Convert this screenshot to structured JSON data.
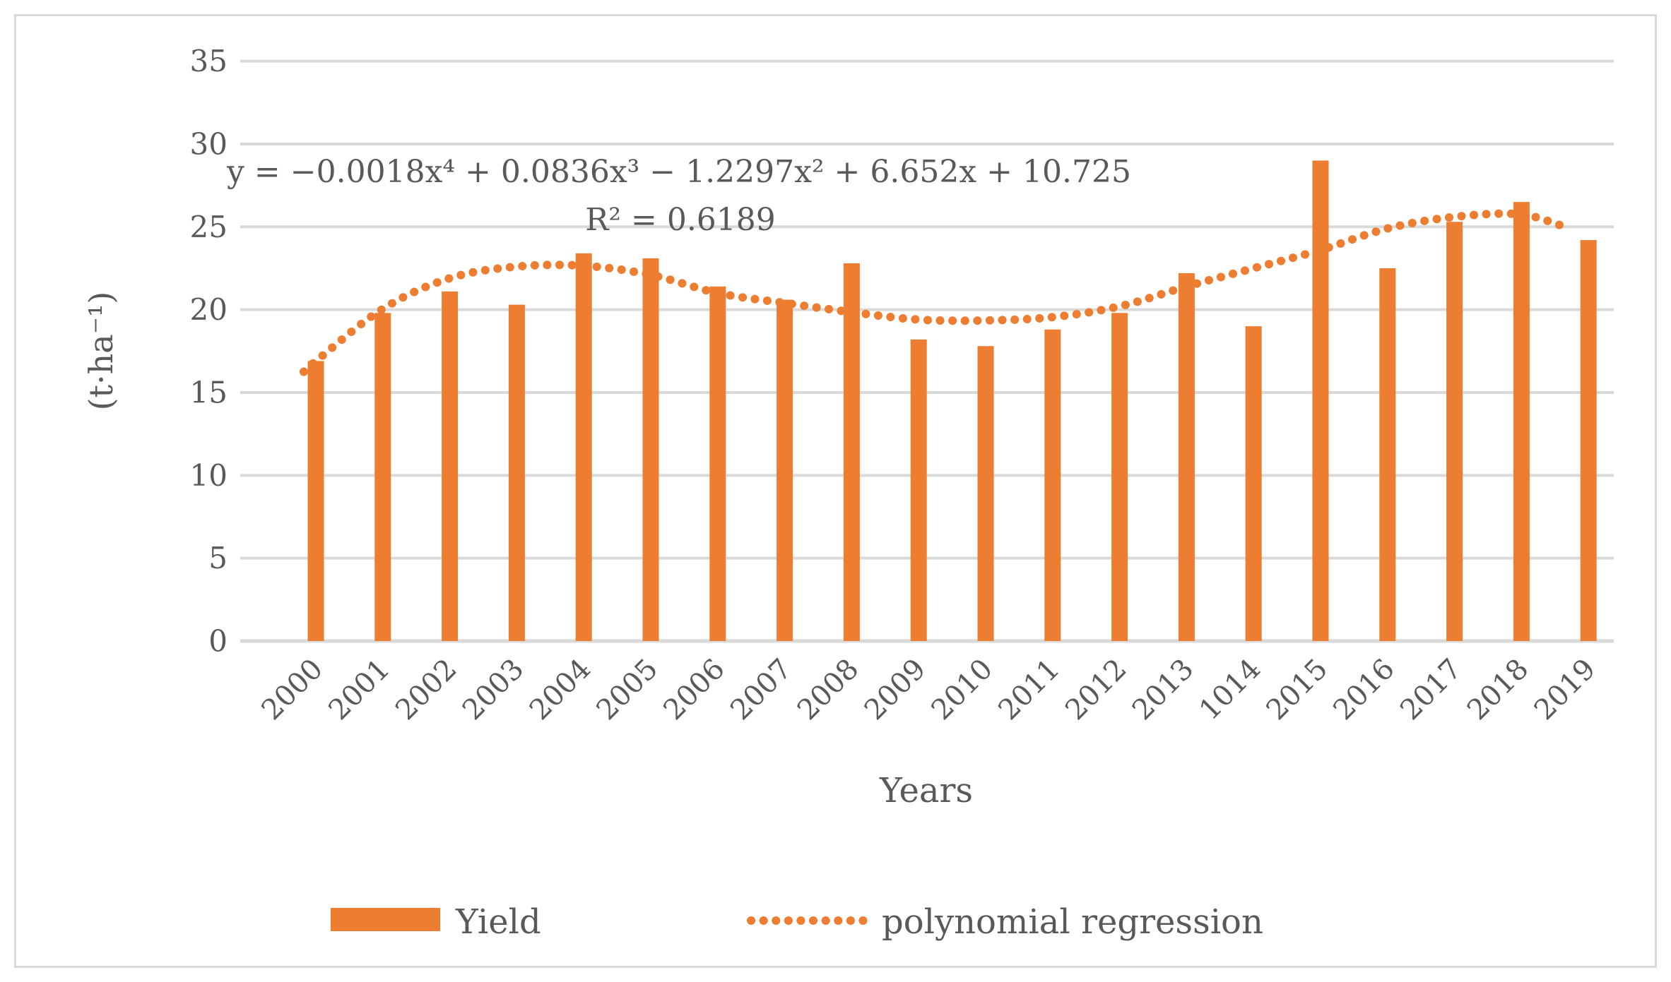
{
  "chart_data": {
    "type": "bar",
    "title": "",
    "xlabel": "Years",
    "ylabel": "(t·ha⁻¹)",
    "ylim": [
      0,
      35
    ],
    "ytick_interval": 5,
    "yticks": [
      0,
      5,
      10,
      15,
      20,
      25,
      30,
      35
    ],
    "grid": true,
    "legend_position": "bottom",
    "categories": [
      "2000",
      "2001",
      "2002",
      "2003",
      "2004",
      "2005",
      "2006",
      "2007",
      "2008",
      "2009",
      "2010",
      "2011",
      "2012",
      "2013",
      "1014",
      "2015",
      "2016",
      "2017",
      "2018",
      "2019"
    ],
    "series": [
      {
        "name": "Yield",
        "type": "bar",
        "values": [
          16.9,
          19.8,
          21.1,
          20.3,
          23.4,
          23.1,
          21.4,
          20.6,
          22.8,
          18.2,
          17.8,
          18.8,
          19.8,
          22.2,
          19.0,
          29.0,
          22.5,
          25.3,
          26.5,
          24.2
        ]
      },
      {
        "name": "polynomial regression",
        "type": "dotted-line",
        "x_unit": "year-index-from-2000",
        "points": [
          [
            -0.18,
            16.25
          ],
          [
            0,
            16.9
          ],
          [
            1,
            20.05
          ],
          [
            2,
            21.9
          ],
          [
            3,
            22.6
          ],
          [
            4,
            22.65
          ],
          [
            5,
            22.1
          ],
          [
            6,
            21.0
          ],
          [
            7,
            20.4
          ],
          [
            8,
            19.85
          ],
          [
            9,
            19.4
          ],
          [
            10,
            19.35
          ],
          [
            11,
            19.55
          ],
          [
            12,
            20.2
          ],
          [
            13,
            21.4
          ],
          [
            14,
            22.5
          ],
          [
            15,
            23.6
          ],
          [
            16,
            24.9
          ],
          [
            17,
            25.6
          ],
          [
            18,
            25.75
          ],
          [
            18.66,
            25.0
          ]
        ]
      }
    ],
    "annotations": {
      "equation": "y = −0.0018x⁴ + 0.0836x³ − 1.2297x² + 6.652x + 10.725",
      "r_squared": "R² = 0.6189"
    },
    "colors": {
      "series": "#ED7D31",
      "grid": "#D9D9D9",
      "text": "#595959",
      "frame": "#D9D9D9"
    }
  }
}
